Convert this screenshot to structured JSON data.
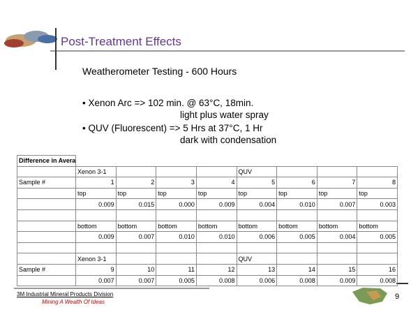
{
  "header": {
    "title": "Post-Treatment Effects",
    "subtitle": "Weatherometer Testing - 600 Hours"
  },
  "bullets": [
    {
      "line1": "• Xenon Arc => 102 min. @ 63°C, 18min.",
      "line2": "light plus water spray"
    },
    {
      "line1": "• QUV (Fluorescent)      => 5 Hrs at 37°C, 1 Hr",
      "line2": "dark with condensation"
    }
  ],
  "table": {
    "rows": [
      [
        "Difference in Averages",
        "",
        "",
        "",
        "",
        "",
        "",
        "",
        ""
      ],
      [
        "",
        "Xenon 3-1",
        "",
        "",
        "",
        "QUV",
        "",
        "",
        ""
      ],
      [
        "Sample #",
        "1",
        "2",
        "3",
        "4",
        "5",
        "6",
        "7",
        "8"
      ],
      [
        "",
        "top",
        "top",
        "top",
        "top",
        "top",
        "top",
        "top",
        "top"
      ],
      [
        "",
        "0.009",
        "0.015",
        "0.000",
        "0.009",
        "0.004",
        "0.010",
        "0.007",
        "0.003"
      ],
      [
        "",
        "",
        "",
        "",
        "",
        "",
        "",
        "",
        ""
      ],
      [
        "",
        "bottom",
        "bottom",
        "bottom",
        "bottom",
        "bottom",
        "bottom",
        "bottom",
        "bottom"
      ],
      [
        "",
        "0.009",
        "0.007",
        "0.010",
        "0.010",
        "0.006",
        "0.005",
        "0.004",
        "0.005"
      ],
      [
        "",
        "",
        "",
        "",
        "",
        "",
        "",
        "",
        ""
      ],
      [
        "",
        "Xenon 3-1",
        "",
        "",
        "",
        "QUV",
        "",
        "",
        ""
      ],
      [
        "Sample #",
        "9",
        "10",
        "11",
        "12",
        "13",
        "14",
        "15",
        "16"
      ],
      [
        "",
        "0.007",
        "0.007",
        "0.005",
        "0.008",
        "0.006",
        "0.008",
        "0.009",
        "0.008"
      ]
    ]
  },
  "footer": {
    "division": "3M Industrial Mineral Products Division",
    "tagline": "Mining A Wealth Of Ideas",
    "page": "9"
  }
}
